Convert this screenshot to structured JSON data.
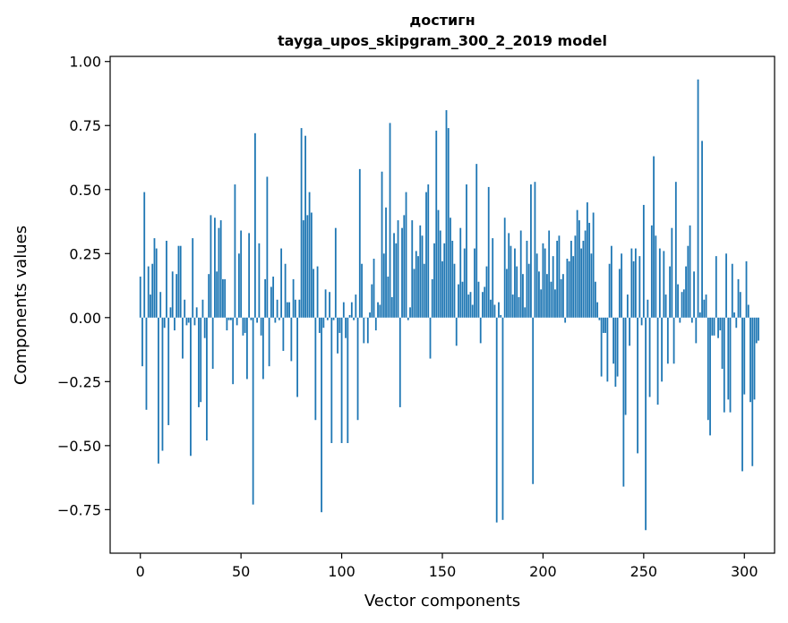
{
  "chart_data": {
    "type": "bar",
    "title": [
      "достигн",
      "tayga_upos_skipgram_300_2_2019 model"
    ],
    "xlabel": "Vector components",
    "ylabel": "Components values",
    "xlim": [
      -15,
      315
    ],
    "ylim": [
      -0.92,
      1.02
    ],
    "xticks": [
      0,
      50,
      100,
      150,
      200,
      250,
      300
    ],
    "yticks": [
      -0.75,
      -0.5,
      -0.25,
      0.0,
      0.25,
      0.5,
      0.75,
      1.0
    ],
    "xtick_labels": [
      "0",
      "50",
      "100",
      "150",
      "200",
      "250",
      "300"
    ],
    "ytick_labels": [
      "−0.75",
      "−0.50",
      "−0.25",
      "0.00",
      "0.25",
      "0.50",
      "0.75",
      "1.00"
    ],
    "bar_color": "#1f77b4",
    "grid": false,
    "legend": "none",
    "values": [
      0.16,
      -0.19,
      0.49,
      -0.36,
      0.2,
      0.09,
      0.21,
      0.31,
      0.27,
      -0.57,
      0.1,
      -0.52,
      -0.04,
      0.3,
      -0.42,
      0.04,
      0.18,
      -0.05,
      0.17,
      0.28,
      0.28,
      -0.16,
      0.07,
      -0.03,
      -0.02,
      -0.54,
      0.31,
      -0.03,
      0.04,
      -0.35,
      -0.33,
      0.07,
      -0.08,
      -0.48,
      0.17,
      0.4,
      -0.2,
      0.39,
      0.18,
      0.35,
      0.38,
      0.15,
      0.15,
      -0.05,
      -0.01,
      -0.01,
      -0.26,
      0.52,
      -0.03,
      0.25,
      0.34,
      -0.07,
      -0.06,
      -0.24,
      0.33,
      -0.01,
      -0.73,
      0.72,
      -0.02,
      0.29,
      -0.07,
      -0.24,
      0.15,
      0.55,
      -0.19,
      0.12,
      0.16,
      -0.02,
      0.07,
      -0.01,
      0.27,
      -0.13,
      0.21,
      0.06,
      0.06,
      -0.17,
      0.15,
      0.07,
      -0.31,
      0.07,
      0.74,
      0.38,
      0.71,
      0.4,
      0.49,
      0.41,
      0.19,
      -0.4,
      0.2,
      -0.06,
      -0.76,
      -0.04,
      0.11,
      -0.01,
      0.1,
      -0.49,
      -0.01,
      0.35,
      -0.14,
      -0.06,
      -0.49,
      0.06,
      -0.08,
      -0.49,
      0.01,
      0.06,
      -0.01,
      0.09,
      -0.4,
      0.58,
      0.21,
      -0.1,
      0.0,
      -0.1,
      0.02,
      0.13,
      0.23,
      -0.05,
      0.06,
      0.05,
      0.57,
      0.25,
      0.43,
      0.16,
      0.76,
      0.08,
      0.33,
      0.29,
      0.38,
      -0.35,
      0.35,
      0.4,
      0.49,
      -0.01,
      0.04,
      0.38,
      0.19,
      0.26,
      0.24,
      0.36,
      0.32,
      0.21,
      0.49,
      0.52,
      -0.16,
      0.15,
      0.29,
      0.73,
      0.42,
      0.34,
      0.22,
      0.29,
      0.81,
      0.74,
      0.39,
      0.3,
      0.21,
      -0.11,
      0.13,
      0.35,
      0.14,
      0.27,
      0.52,
      0.09,
      0.1,
      0.05,
      0.27,
      0.6,
      0.14,
      -0.1,
      0.1,
      0.12,
      0.2,
      0.51,
      0.07,
      0.31,
      0.05,
      -0.8,
      0.06,
      0.01,
      -0.79,
      0.39,
      0.19,
      0.33,
      0.28,
      0.09,
      0.27,
      0.2,
      0.08,
      0.34,
      0.17,
      0.04,
      0.3,
      0.21,
      0.52,
      -0.65,
      0.53,
      0.25,
      0.18,
      0.11,
      0.29,
      0.27,
      0.17,
      0.34,
      0.14,
      0.24,
      0.11,
      0.3,
      0.32,
      0.15,
      0.17,
      -0.02,
      0.23,
      0.22,
      0.3,
      0.24,
      0.32,
      0.42,
      0.38,
      0.27,
      0.3,
      0.34,
      0.45,
      0.37,
      0.25,
      0.41,
      0.14,
      0.06,
      -0.01,
      -0.23,
      -0.06,
      -0.06,
      -0.25,
      0.21,
      0.28,
      -0.18,
      -0.27,
      -0.23,
      0.19,
      0.25,
      -0.66,
      -0.38,
      0.09,
      -0.11,
      0.27,
      0.22,
      0.27,
      -0.53,
      0.24,
      -0.03,
      0.44,
      -0.83,
      0.07,
      -0.31,
      0.36,
      0.63,
      0.32,
      -0.34,
      0.27,
      -0.25,
      0.26,
      0.09,
      -0.18,
      0.2,
      0.35,
      -0.18,
      0.53,
      0.13,
      -0.02,
      0.1,
      0.11,
      0.2,
      0.28,
      0.36,
      -0.02,
      0.18,
      -0.1,
      0.93,
      0.02,
      0.69,
      0.07,
      0.09,
      -0.4,
      -0.46,
      -0.07,
      -0.07,
      0.24,
      -0.08,
      -0.05,
      -0.2,
      -0.37,
      0.25,
      -0.32,
      -0.37,
      0.21,
      0.02,
      -0.04,
      0.15,
      0.1,
      -0.6,
      -0.3,
      0.22,
      0.05,
      -0.33,
      -0.58,
      -0.32,
      -0.1,
      -0.09
    ]
  }
}
